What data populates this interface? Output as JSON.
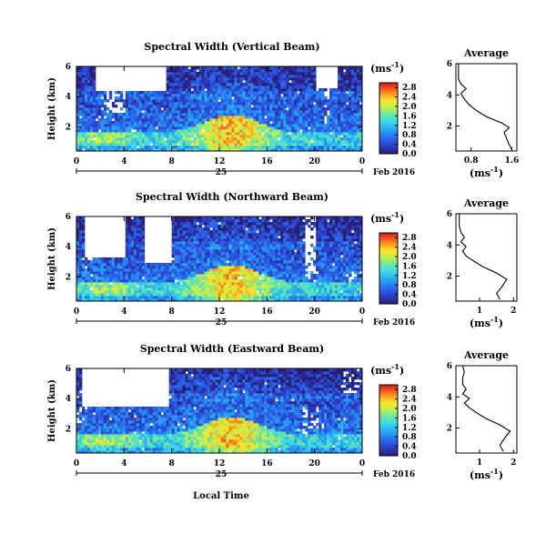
{
  "colorbar_unit": "(ms",
  "colorbar_unit_sup": "-1",
  "average_title": "Average",
  "date_label": "Feb 2016",
  "day_label": "25",
  "time_axis_label": "Local Time",
  "chart_data": [
    {
      "type": "heatmap",
      "title": "Spectral Width (Vertical Beam)",
      "ylabel": "Height (km)",
      "xlabel": "Local Time",
      "x_range_hours": [
        0,
        24
      ],
      "x_ticks": [
        "0",
        "4",
        "8",
        "12",
        "16",
        "20",
        "0"
      ],
      "y_range_km": [
        0.4,
        6
      ],
      "y_ticks": [
        "2",
        "4",
        "6"
      ],
      "colorbar_ticks": [
        "0.0",
        "0.4",
        "0.8",
        "1.2",
        "1.6",
        "2.0",
        "2.4",
        "2.8"
      ],
      "colorbar_range": [
        0,
        3.0
      ],
      "profile": {
        "title": "Average",
        "xlabel": "(ms-1)",
        "x_ticks": [
          "0.8",
          "1.6"
        ],
        "x_range": [
          0.5,
          1.7
        ],
        "y_ticks": [
          "2",
          "4",
          "6"
        ],
        "points": [
          [
            1.6,
            0.5
          ],
          [
            1.55,
            0.8
          ],
          [
            1.5,
            1.2
          ],
          [
            1.45,
            1.6
          ],
          [
            1.55,
            1.9
          ],
          [
            1.4,
            2.2
          ],
          [
            1.1,
            2.6
          ],
          [
            0.9,
            3.0
          ],
          [
            0.75,
            3.4
          ],
          [
            0.65,
            3.8
          ],
          [
            0.6,
            4.1
          ],
          [
            0.7,
            4.4
          ],
          [
            0.6,
            4.7
          ],
          [
            0.55,
            5.0
          ],
          [
            0.55,
            5.5
          ],
          [
            0.55,
            6.0
          ]
        ]
      }
    },
    {
      "type": "heatmap",
      "title": "Spectral Width (Northward Beam)",
      "ylabel": "Height (km)",
      "xlabel": "Local Time",
      "x_range_hours": [
        0,
        24
      ],
      "x_ticks": [
        "0",
        "4",
        "8",
        "12",
        "16",
        "20",
        "0"
      ],
      "y_range_km": [
        0.4,
        6
      ],
      "y_ticks": [
        "2",
        "4",
        "6"
      ],
      "colorbar_ticks": [
        "0.0",
        "0.4",
        "0.8",
        "1.2",
        "1.6",
        "2.0",
        "2.4",
        "2.8"
      ],
      "colorbar_range": [
        0,
        3.0
      ],
      "profile": {
        "title": "Average",
        "xlabel": "(ms-1)",
        "x_ticks": [
          "1",
          "2"
        ],
        "x_range": [
          0.3,
          2.1
        ],
        "y_ticks": [
          "2",
          "4",
          "6"
        ],
        "points": [
          [
            1.6,
            0.5
          ],
          [
            1.5,
            0.9
          ],
          [
            1.65,
            1.3
          ],
          [
            1.8,
            1.8
          ],
          [
            1.5,
            2.2
          ],
          [
            1.1,
            2.6
          ],
          [
            0.8,
            3.0
          ],
          [
            0.6,
            3.3
          ],
          [
            0.5,
            3.6
          ],
          [
            0.6,
            3.9
          ],
          [
            0.45,
            4.2
          ],
          [
            0.55,
            4.5
          ],
          [
            0.45,
            4.8
          ],
          [
            0.4,
            5.2
          ],
          [
            0.4,
            5.6
          ],
          [
            0.4,
            6.0
          ]
        ]
      }
    },
    {
      "type": "heatmap",
      "title": "Spectral Width (Eastward Beam)",
      "ylabel": "Height (km)",
      "xlabel": "Local Time",
      "x_range_hours": [
        0,
        24
      ],
      "x_ticks": [
        "0",
        "4",
        "8",
        "12",
        "16",
        "20",
        "0"
      ],
      "y_range_km": [
        0.4,
        6
      ],
      "y_ticks": [
        "2",
        "4",
        "6"
      ],
      "colorbar_ticks": [
        "0.0",
        "0.4",
        "0.8",
        "1.2",
        "1.6",
        "2.0",
        "2.4",
        "2.8"
      ],
      "colorbar_range": [
        0,
        3.0
      ],
      "profile": {
        "title": "Average",
        "xlabel": "(ms-1)",
        "x_ticks": [
          "1",
          "2"
        ],
        "x_range": [
          0.3,
          2.1
        ],
        "y_ticks": [
          "2",
          "4",
          "6"
        ],
        "points": [
          [
            1.7,
            0.5
          ],
          [
            1.6,
            0.9
          ],
          [
            1.75,
            1.4
          ],
          [
            1.9,
            1.8
          ],
          [
            1.6,
            2.2
          ],
          [
            1.2,
            2.6
          ],
          [
            0.9,
            3.0
          ],
          [
            0.7,
            3.3
          ],
          [
            0.55,
            3.6
          ],
          [
            0.7,
            3.9
          ],
          [
            0.5,
            4.2
          ],
          [
            0.6,
            4.5
          ],
          [
            0.5,
            4.8
          ],
          [
            0.5,
            5.2
          ],
          [
            0.55,
            5.6
          ],
          [
            0.5,
            6.0
          ]
        ]
      }
    }
  ]
}
